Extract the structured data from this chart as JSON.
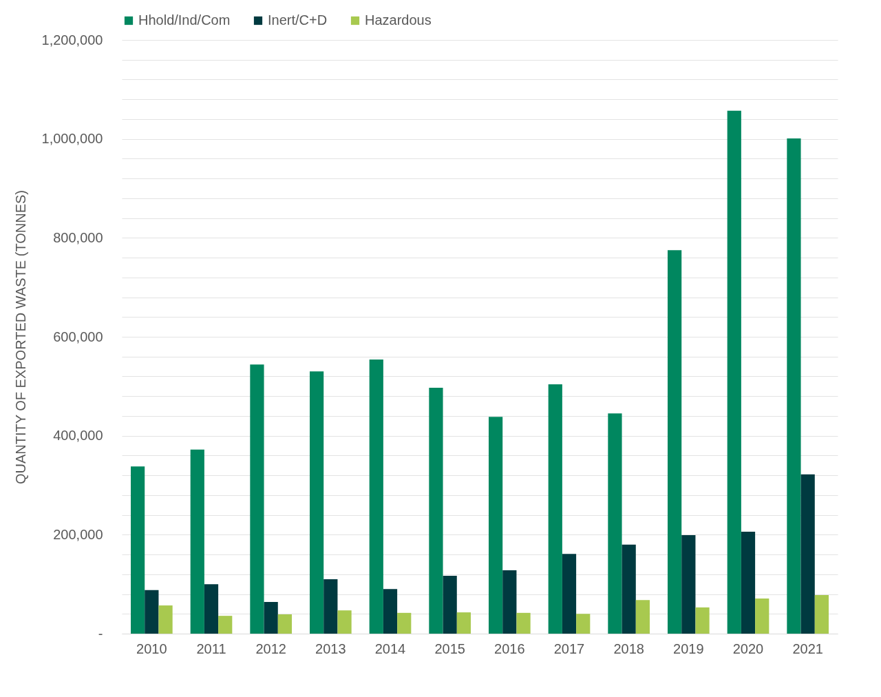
{
  "chart_data": {
    "type": "bar",
    "ylabel": "QUANTITY OF EXPORTED WASTE (TONNES)",
    "categories": [
      "2010",
      "2011",
      "2012",
      "2013",
      "2014",
      "2015",
      "2016",
      "2017",
      "2018",
      "2019",
      "2020",
      "2021"
    ],
    "series": [
      {
        "name": "Hhold/Ind/Com",
        "color": "#00875f",
        "values": [
          338000,
          372000,
          544000,
          530000,
          554000,
          497000,
          438000,
          504000,
          445000,
          775000,
          1057000,
          1001000
        ]
      },
      {
        "name": "Inert/C+D",
        "color": "#003a40",
        "values": [
          88000,
          100000,
          64000,
          110000,
          90000,
          117000,
          128000,
          161000,
          180000,
          199000,
          206000,
          322000
        ]
      },
      {
        "name": "Hazardous",
        "color": "#a8c94f",
        "values": [
          57000,
          36000,
          39000,
          47000,
          42000,
          43000,
          42000,
          40000,
          68000,
          53000,
          71000,
          78000
        ]
      }
    ],
    "ylim": [
      0,
      1200000
    ],
    "yticks": [
      {
        "value": 0,
        "label": "-"
      },
      {
        "value": 40000,
        "label": null
      },
      {
        "value": 80000,
        "label": null
      },
      {
        "value": 120000,
        "label": null
      },
      {
        "value": 160000,
        "label": null
      },
      {
        "value": 200000,
        "label": "200,000"
      },
      {
        "value": 240000,
        "label": null
      },
      {
        "value": 280000,
        "label": null
      },
      {
        "value": 320000,
        "label": null
      },
      {
        "value": 360000,
        "label": null
      },
      {
        "value": 400000,
        "label": "400,000"
      },
      {
        "value": 440000,
        "label": null
      },
      {
        "value": 480000,
        "label": null
      },
      {
        "value": 520000,
        "label": null
      },
      {
        "value": 560000,
        "label": null
      },
      {
        "value": 600000,
        "label": "600,000"
      },
      {
        "value": 640000,
        "label": null
      },
      {
        "value": 680000,
        "label": null
      },
      {
        "value": 720000,
        "label": null
      },
      {
        "value": 760000,
        "label": null
      },
      {
        "value": 800000,
        "label": "800,000"
      },
      {
        "value": 840000,
        "label": null
      },
      {
        "value": 880000,
        "label": null
      },
      {
        "value": 920000,
        "label": null
      },
      {
        "value": 960000,
        "label": null
      },
      {
        "value": 1000000,
        "label": "1,000,000"
      },
      {
        "value": 1040000,
        "label": null
      },
      {
        "value": 1080000,
        "label": null
      },
      {
        "value": 1120000,
        "label": null
      },
      {
        "value": 1160000,
        "label": null
      },
      {
        "value": 1200000,
        "label": "1,200,000"
      }
    ],
    "grid": true,
    "legend": "top"
  }
}
